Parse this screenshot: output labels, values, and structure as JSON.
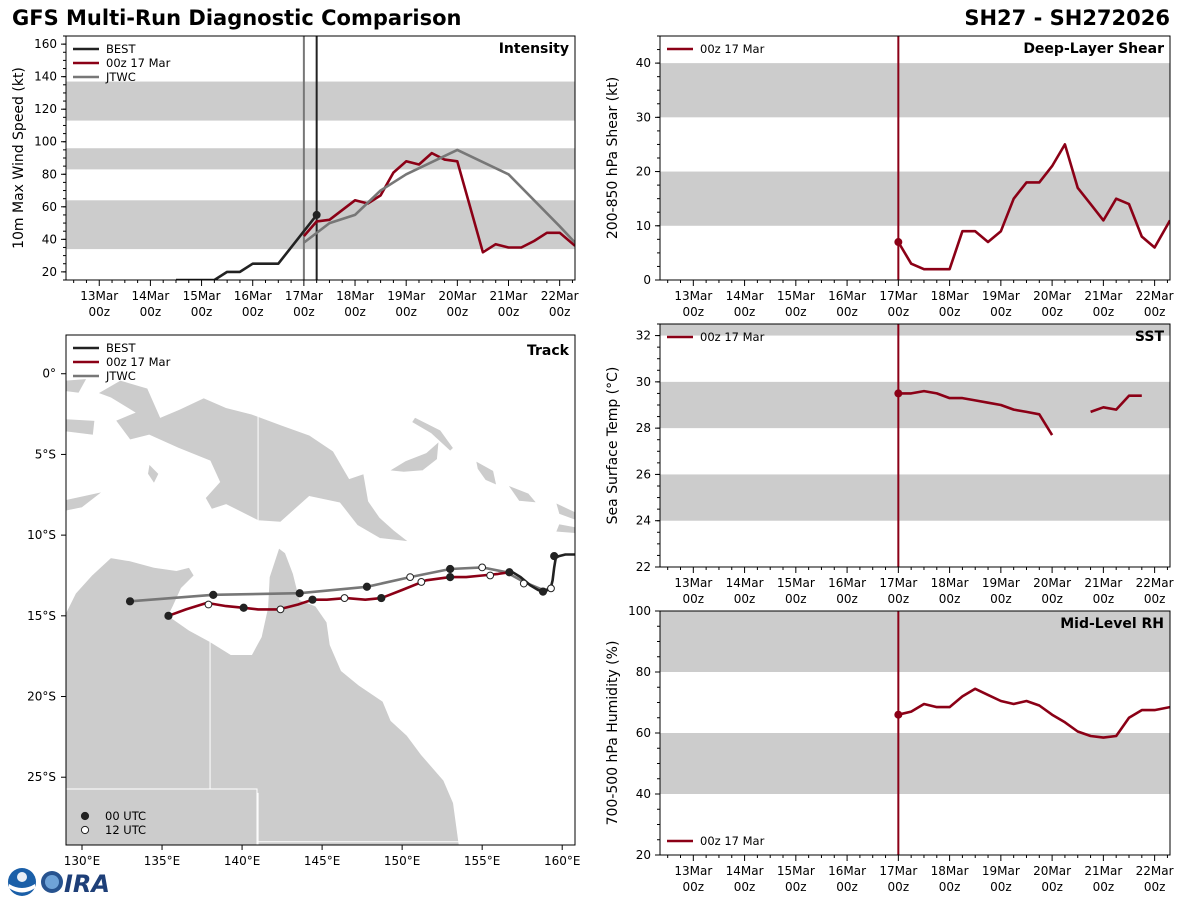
{
  "header": {
    "left_title": "GFS Multi-Run Diagnostic Comparison",
    "right_title": "SH27 - SH272026"
  },
  "time_ticks": [
    {
      "day": "13Mar",
      "hour": "00z"
    },
    {
      "day": "14Mar",
      "hour": "00z"
    },
    {
      "day": "15Mar",
      "hour": "00z"
    },
    {
      "day": "16Mar",
      "hour": "00z"
    },
    {
      "day": "17Mar",
      "hour": "00z"
    },
    {
      "day": "18Mar",
      "hour": "00z"
    },
    {
      "day": "19Mar",
      "hour": "00z"
    },
    {
      "day": "20Mar",
      "hour": "00z"
    },
    {
      "day": "21Mar",
      "hour": "00z"
    },
    {
      "day": "22Mar",
      "hour": "00z"
    }
  ],
  "colors": {
    "best": "#222222",
    "gfs": "#8b0016",
    "jtwc": "#777777",
    "band": "#cccccc",
    "land": "#cccccc"
  },
  "chart_data": [
    {
      "id": "intensity",
      "type": "line",
      "title": "Intensity",
      "ylabel": "10m Max Wind Speed (kt)",
      "xlim_days": [
        -4.65,
        5.3
      ],
      "ylim": [
        15,
        165
      ],
      "yticks": [
        20,
        40,
        60,
        80,
        100,
        120,
        140,
        160
      ],
      "bands": [
        [
          34,
          64
        ],
        [
          83,
          96
        ],
        [
          113,
          137
        ]
      ],
      "vlines": [
        {
          "x": 0.0,
          "color": "#777777"
        },
        {
          "x": 0.25,
          "color": "#222222"
        }
      ],
      "legend": [
        "BEST",
        "00z 17 Mar",
        "JTWC"
      ],
      "series": [
        {
          "name": "BEST",
          "color": "#222222",
          "x": [
            -2.5,
            -1.75,
            -1.5,
            -1.25,
            -1.0,
            -0.5,
            0.25
          ],
          "y": [
            15,
            15,
            20,
            20,
            25,
            25,
            55
          ],
          "end_marker": true
        },
        {
          "name": "00z 17 Mar",
          "color": "#8b0016",
          "x": [
            0.0,
            0.25,
            0.5,
            1.0,
            1.25,
            1.5,
            1.75,
            2.0,
            2.25,
            2.5,
            2.75,
            3.0,
            3.5,
            3.75,
            4.0,
            4.25,
            4.5,
            4.75,
            5.0,
            5.3
          ],
          "y": [
            42,
            51,
            52,
            64,
            62,
            67,
            81,
            88,
            86,
            93,
            89,
            88,
            32,
            37,
            35,
            35,
            39,
            44,
            44,
            36
          ]
        },
        {
          "name": "JTWC",
          "color": "#777777",
          "x": [
            0.0,
            0.5,
            1.0,
            1.5,
            2.0,
            3.0,
            4.0,
            5.0,
            5.3
          ],
          "y": [
            38,
            50,
            55,
            70,
            80,
            95,
            80,
            48,
            38
          ]
        }
      ]
    },
    {
      "id": "shear",
      "type": "line",
      "title": "Deep-Layer Shear",
      "ylabel": "200-850 hPa Shear (kt)",
      "xlim_days": [
        -4.65,
        5.3
      ],
      "ylim": [
        0,
        45
      ],
      "yticks": [
        0,
        10,
        20,
        30,
        40
      ],
      "bands": [
        [
          10,
          20
        ],
        [
          30,
          40
        ]
      ],
      "vlines": [
        {
          "x": 0.0,
          "color": "#8b0016"
        }
      ],
      "legend": [
        "00z 17 Mar"
      ],
      "series": [
        {
          "name": "00z 17 Mar",
          "color": "#8b0016",
          "start_marker": true,
          "x": [
            0.0,
            0.25,
            0.5,
            0.75,
            1.0,
            1.25,
            1.5,
            1.75,
            2.0,
            2.25,
            2.5,
            2.75,
            3.0,
            3.25,
            3.5,
            3.75,
            4.0,
            4.25,
            4.5,
            4.75,
            5.0,
            5.3
          ],
          "y": [
            7,
            3,
            2,
            2,
            2,
            9,
            9,
            7,
            9,
            15,
            18,
            18,
            21,
            25,
            17,
            14,
            11,
            15,
            14,
            8,
            6,
            11
          ]
        }
      ]
    },
    {
      "id": "sst",
      "type": "line",
      "title": "SST",
      "ylabel": "Sea Surface Temp (°C)",
      "xlim_days": [
        -4.65,
        5.3
      ],
      "ylim": [
        22,
        32.5
      ],
      "yticks": [
        22,
        24,
        26,
        28,
        30,
        32
      ],
      "bands": [
        [
          24,
          26
        ],
        [
          28,
          30
        ],
        [
          32,
          34
        ]
      ],
      "vlines": [
        {
          "x": 0.0,
          "color": "#8b0016"
        }
      ],
      "legend": [
        "00z 17 Mar"
      ],
      "series": [
        {
          "name": "00z 17 Mar",
          "color": "#8b0016",
          "start_marker": true,
          "x": [
            0.0,
            0.25,
            0.5,
            0.75,
            1.0,
            1.25,
            1.5,
            1.75,
            2.0,
            2.25,
            2.5,
            2.75,
            3.0,
            null,
            3.75,
            4.0,
            4.25,
            4.5,
            4.75
          ],
          "y": [
            29.5,
            29.5,
            29.6,
            29.5,
            29.3,
            29.3,
            29.2,
            29.1,
            29.0,
            28.8,
            28.7,
            28.6,
            27.7,
            null,
            28.7,
            28.9,
            28.8,
            29.4,
            29.4
          ]
        }
      ]
    },
    {
      "id": "rh",
      "type": "line",
      "title": "Mid-Level RH",
      "ylabel": "700-500 hPa Humidity (%)",
      "xlim_days": [
        -4.65,
        5.3
      ],
      "ylim": [
        20,
        100
      ],
      "yticks": [
        20,
        40,
        60,
        80,
        100
      ],
      "bands": [
        [
          40,
          60
        ],
        [
          80,
          100
        ]
      ],
      "vlines": [
        {
          "x": 0.0,
          "color": "#8b0016"
        }
      ],
      "legend": [
        "00z 17 Mar"
      ],
      "series": [
        {
          "name": "00z 17 Mar",
          "color": "#8b0016",
          "start_marker": true,
          "x": [
            0.0,
            0.25,
            0.5,
            0.75,
            1.0,
            1.25,
            1.5,
            1.75,
            2.0,
            2.25,
            2.5,
            2.75,
            3.0,
            3.25,
            3.5,
            3.75,
            4.0,
            4.25,
            4.5,
            4.75,
            5.0,
            5.3
          ],
          "y": [
            66,
            67,
            69.5,
            68.5,
            68.5,
            72,
            74.5,
            72.5,
            70.5,
            69.5,
            70.5,
            69,
            66,
            63.5,
            60.5,
            59,
            58.5,
            59,
            65,
            67.5,
            67.5,
            68.5
          ]
        }
      ]
    },
    {
      "id": "track",
      "type": "scatter",
      "title": "Track",
      "xlabel": "",
      "ylabel": "",
      "xlim": [
        129,
        160.8
      ],
      "ylim": [
        -29.2,
        2.4
      ],
      "xticks": [
        {
          "v": 130,
          "label": "130°E"
        },
        {
          "v": 135,
          "label": "135°E"
        },
        {
          "v": 140,
          "label": "140°E"
        },
        {
          "v": 145,
          "label": "145°E"
        },
        {
          "v": 150,
          "label": "150°E"
        },
        {
          "v": 155,
          "label": "155°E"
        },
        {
          "v": 160,
          "label": "160°E"
        }
      ],
      "yticks": [
        {
          "v": 0,
          "label": "0°"
        },
        {
          "v": -5,
          "label": "5°S"
        },
        {
          "v": -10,
          "label": "10°S"
        },
        {
          "v": -15,
          "label": "15°S"
        },
        {
          "v": -20,
          "label": "20°S"
        },
        {
          "v": -25,
          "label": "25°S"
        }
      ],
      "legend": [
        "BEST",
        "00z 17 Mar",
        "JTWC"
      ],
      "marker_legend": [
        "00 UTC",
        "12 UTC"
      ],
      "series": [
        {
          "name": "BEST",
          "color": "#222222",
          "lon": [
            160.8,
            160.2,
            159.8,
            159.6,
            159.5,
            159.4,
            159.3,
            159.1,
            158.8,
            158.5,
            158.0,
            157.4,
            156.9,
            156.5
          ],
          "lat": [
            -11.2,
            -11.2,
            -11.3,
            -11.4,
            -12.0,
            -12.8,
            -13.2,
            -13.4,
            -13.5,
            -13.4,
            -13.1,
            -12.6,
            -12.3,
            -12.3
          ],
          "markers_00": [
            [
              159.5,
              -11.3
            ],
            [
              158.8,
              -13.5
            ]
          ],
          "markers_12": [
            [
              157.6,
              -13.0
            ]
          ]
        },
        {
          "name": "00z 17 Mar",
          "color": "#8b0016",
          "lon": [
            156.7,
            156.0,
            155.0,
            154.0,
            153.0,
            151.5,
            150.0,
            148.7,
            147.7,
            146.5,
            145.3,
            144.4,
            143.5,
            142.3,
            141.0,
            140.1,
            139.0,
            137.8,
            136.5,
            135.4
          ],
          "lat": [
            -12.3,
            -12.4,
            -12.5,
            -12.6,
            -12.6,
            -12.8,
            -13.4,
            -13.9,
            -14.0,
            -13.9,
            -14.0,
            -14.0,
            -14.3,
            -14.6,
            -14.6,
            -14.5,
            -14.4,
            -14.2,
            -14.6,
            -15.0
          ],
          "markers_00": [
            [
              156.7,
              -12.3
            ],
            [
              153.0,
              -12.6
            ],
            [
              148.7,
              -13.9
            ],
            [
              144.4,
              -14.0
            ],
            [
              140.1,
              -14.5
            ],
            [
              135.4,
              -15.0
            ]
          ],
          "markers_12": [
            [
              155.5,
              -12.5
            ],
            [
              151.2,
              -12.9
            ],
            [
              146.4,
              -13.9
            ],
            [
              142.4,
              -14.6
            ],
            [
              137.9,
              -14.3
            ]
          ]
        },
        {
          "name": "JTWC",
          "color": "#777777",
          "lon": [
            159.3,
            158.8,
            157.6,
            156.5,
            155.0,
            153.0,
            150.5,
            147.8,
            143.6,
            138.2,
            133.0
          ],
          "lat": [
            -13.3,
            -13.4,
            -12.9,
            -12.3,
            -12.0,
            -12.1,
            -12.6,
            -13.2,
            -13.6,
            -13.7,
            -14.1
          ],
          "markers_00": [
            [
              153.0,
              -12.1
            ],
            [
              147.8,
              -13.2
            ],
            [
              143.6,
              -13.6
            ],
            [
              138.2,
              -13.7
            ],
            [
              133.0,
              -14.1
            ]
          ],
          "markers_12": [
            [
              159.3,
              -13.3
            ],
            [
              155.0,
              -12.0
            ],
            [
              150.5,
              -12.6
            ]
          ]
        }
      ]
    }
  ]
}
